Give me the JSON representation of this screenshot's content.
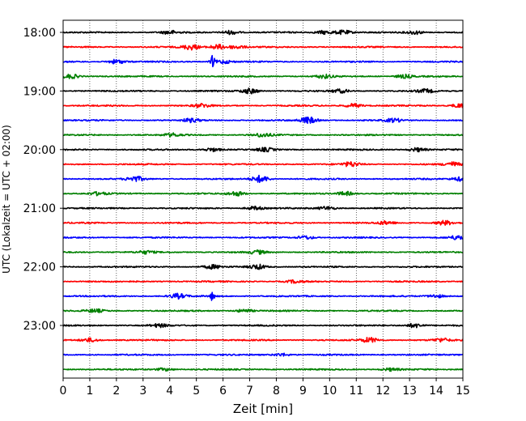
{
  "chart_data": {
    "type": "line",
    "title": "",
    "xlabel": "Zeit  [min]",
    "ylabel": "UTC (Lokalzeit = UTC + 02:00)",
    "xlim": [
      0,
      15
    ],
    "x_ticks": [
      0,
      1,
      2,
      3,
      4,
      5,
      6,
      7,
      8,
      9,
      10,
      11,
      12,
      13,
      14,
      15
    ],
    "x_tick_labels": [
      "0",
      "1",
      "2",
      "3",
      "4",
      "5",
      "6",
      "7",
      "8",
      "9",
      "10",
      "11",
      "12",
      "13",
      "14",
      "15"
    ],
    "y_ticks": [
      "18:00",
      "19:00",
      "20:00",
      "21:00",
      "22:00",
      "23:00"
    ],
    "grid": "vertical dotted lines at each minute",
    "trace_interval_minutes": 15,
    "color_cycle": [
      "#000000",
      "#ff0000",
      "#0000ff",
      "#008000"
    ],
    "traces": [
      {
        "start": "18:00",
        "color": "#000000",
        "events": [
          [
            4,
            0.5
          ],
          [
            6.3,
            0.55
          ],
          [
            9.8,
            0.5
          ],
          [
            10.5,
            0.6
          ],
          [
            13.2,
            0.5
          ]
        ]
      },
      {
        "start": "18:15",
        "color": "#ff0000",
        "events": [
          [
            4.8,
            0.75
          ],
          [
            5.8,
            0.7
          ],
          [
            6.5,
            0.5
          ]
        ]
      },
      {
        "start": "18:30",
        "color": "#0000ff",
        "events": [
          [
            2,
            0.6
          ],
          [
            5.6,
            1.6
          ],
          [
            6,
            0.5
          ]
        ]
      },
      {
        "start": "18:45",
        "color": "#008000",
        "events": [
          [
            0.3,
            0.6
          ],
          [
            9.8,
            0.5
          ],
          [
            12.8,
            0.5
          ]
        ]
      },
      {
        "start": "19:00",
        "color": "#000000",
        "events": [
          [
            7,
            0.75
          ],
          [
            10.4,
            0.5
          ],
          [
            13.6,
            0.5
          ]
        ]
      },
      {
        "start": "19:15",
        "color": "#ff0000",
        "events": [
          [
            5.2,
            0.5
          ],
          [
            10.9,
            0.55
          ],
          [
            14.9,
            0.6
          ]
        ]
      },
      {
        "start": "19:30",
        "color": "#0000ff",
        "events": [
          [
            4.8,
            0.5
          ],
          [
            9.2,
            0.9
          ],
          [
            12.4,
            0.5
          ]
        ]
      },
      {
        "start": "19:45",
        "color": "#008000",
        "events": [
          [
            7.5,
            0.55
          ],
          [
            4.1,
            0.45
          ]
        ]
      },
      {
        "start": "20:00",
        "color": "#000000",
        "events": [
          [
            5.6,
            0.5
          ],
          [
            7.6,
            0.5
          ],
          [
            13.3,
            0.55
          ]
        ]
      },
      {
        "start": "20:15",
        "color": "#ff0000",
        "events": [
          [
            10.8,
            0.65
          ],
          [
            14.6,
            0.6
          ]
        ]
      },
      {
        "start": "20:30",
        "color": "#0000ff",
        "events": [
          [
            2.7,
            0.7
          ],
          [
            7.4,
            1.0
          ],
          [
            14.9,
            0.55
          ]
        ]
      },
      {
        "start": "20:45",
        "color": "#008000",
        "events": [
          [
            6.5,
            0.6
          ],
          [
            10.6,
            0.55
          ],
          [
            1.3,
            0.45
          ]
        ]
      },
      {
        "start": "21:00",
        "color": "#000000",
        "events": [
          [
            7.2,
            0.5
          ],
          [
            9.9,
            0.5
          ]
        ]
      },
      {
        "start": "21:15",
        "color": "#ff0000",
        "events": [
          [
            14.3,
            0.65
          ],
          [
            12.1,
            0.45
          ]
        ]
      },
      {
        "start": "21:30",
        "color": "#0000ff",
        "events": [
          [
            9.1,
            0.5
          ],
          [
            14.8,
            0.55
          ]
        ]
      },
      {
        "start": "21:45",
        "color": "#008000",
        "events": [
          [
            7.3,
            0.5
          ],
          [
            3.1,
            0.4
          ]
        ]
      },
      {
        "start": "22:00",
        "color": "#000000",
        "events": [
          [
            5.6,
            0.55
          ],
          [
            7.3,
            0.7
          ]
        ]
      },
      {
        "start": "22:15",
        "color": "#ff0000",
        "events": [
          [
            8.7,
            0.4
          ]
        ]
      },
      {
        "start": "22:30",
        "color": "#0000ff",
        "events": [
          [
            4.3,
            0.7
          ],
          [
            5.6,
            1.2
          ],
          [
            14,
            0.45
          ]
        ]
      },
      {
        "start": "22:45",
        "color": "#008000",
        "events": [
          [
            1.2,
            0.45
          ],
          [
            6.8,
            0.45
          ]
        ]
      },
      {
        "start": "23:00",
        "color": "#000000",
        "events": [
          [
            3.6,
            0.45
          ],
          [
            13.2,
            0.6
          ]
        ]
      },
      {
        "start": "23:15",
        "color": "#ff0000",
        "events": [
          [
            1,
            0.55
          ],
          [
            11.5,
            0.7
          ],
          [
            14.2,
            0.5
          ]
        ]
      },
      {
        "start": "23:30",
        "color": "#0000ff",
        "events": [
          [
            8.2,
            0.4
          ]
        ]
      },
      {
        "start": "23:45",
        "color": "#008000",
        "events": [
          [
            3.8,
            0.4
          ],
          [
            12.3,
            0.4
          ]
        ]
      }
    ]
  }
}
